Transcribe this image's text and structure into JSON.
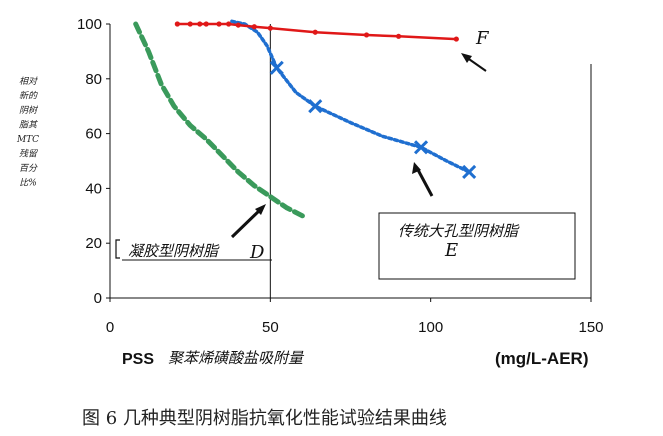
{
  "caption": "图 6   几种典型阴树脂抗氧化性能试验结果曲线",
  "chart_data": {
    "type": "line",
    "title": "",
    "xlabel_prefix": "PSS",
    "xlabel": "聚苯烯磺酸盐吸附量",
    "xunit": "(mg/L-AER)",
    "ylabel": "相对新的阴树脂其MTC残留百分比%",
    "ylabel_lines": [
      "相对",
      "新的",
      "阴树",
      "脂其",
      "MTC",
      "残留",
      "百分",
      "比%"
    ],
    "xlim": [
      0,
      150
    ],
    "ylim": [
      0,
      100
    ],
    "xticks": [
      "0",
      "50",
      "100",
      "150"
    ],
    "yticks": [
      "0",
      "20",
      "40",
      "60",
      "80",
      "100"
    ],
    "grid": false,
    "series": [
      {
        "key": "D",
        "color": "#3a9a5b",
        "points": [
          [
            8,
            100
          ],
          [
            12,
            90
          ],
          [
            16,
            78
          ],
          [
            20,
            70
          ],
          [
            25,
            63
          ],
          [
            30,
            58
          ],
          [
            35,
            52
          ],
          [
            40,
            46
          ],
          [
            45,
            41
          ],
          [
            50,
            37
          ],
          [
            55,
            33
          ],
          [
            60,
            30
          ]
        ]
      },
      {
        "key": "E",
        "color": "#1f6fd0",
        "points": [
          [
            38,
            101
          ],
          [
            42,
            100
          ],
          [
            46,
            97
          ],
          [
            49,
            92
          ],
          [
            52,
            84
          ],
          [
            58,
            75
          ],
          [
            64,
            70
          ],
          [
            75,
            64
          ],
          [
            85,
            59
          ],
          [
            97,
            55
          ],
          [
            105,
            50
          ],
          [
            112,
            46
          ]
        ],
        "markers_x": [
          52,
          64,
          97,
          112
        ]
      },
      {
        "key": "F",
        "color": "#e01818",
        "points": [
          [
            21,
            100
          ],
          [
            25,
            100
          ],
          [
            28,
            100
          ],
          [
            30,
            100
          ],
          [
            34,
            100
          ],
          [
            37,
            100
          ],
          [
            40,
            99.6
          ],
          [
            45,
            99
          ],
          [
            50,
            98.5
          ],
          [
            64,
            97
          ],
          [
            80,
            96
          ],
          [
            90,
            95.5
          ],
          [
            108,
            94.5
          ]
        ]
      }
    ],
    "annotations": {
      "D_label": "凝胶型阴树脂",
      "D_key": "D",
      "E_label": "传统大孔型阴树脂",
      "E_key": "E",
      "F_key": "F"
    }
  }
}
